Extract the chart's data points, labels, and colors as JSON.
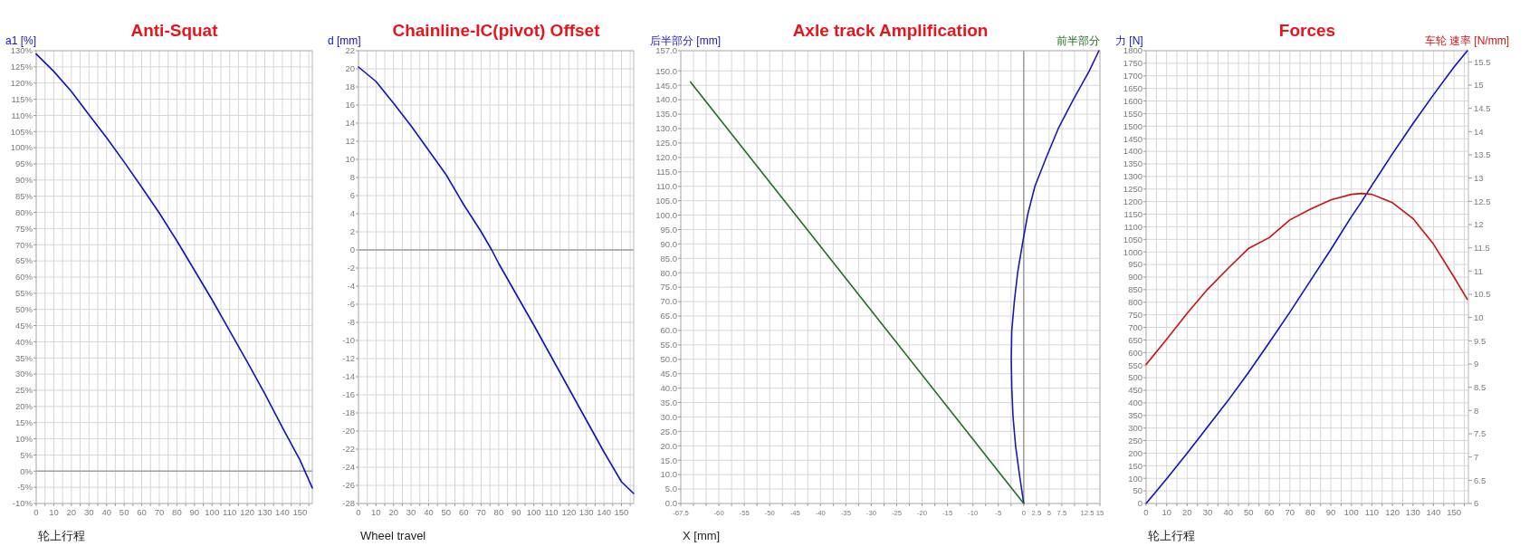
{
  "chart_data": [
    {
      "type": "line",
      "title": "Anti-Squat",
      "ylabel": "a1 [%]",
      "xlabel": "轮上行程",
      "x": [
        0,
        10,
        20,
        30,
        40,
        50,
        60,
        70,
        80,
        90,
        100,
        110,
        120,
        130,
        140,
        150,
        157
      ],
      "series": [
        {
          "color": "#1010c0",
          "values": [
            129,
            123.6,
            117.4,
            110.2,
            103.1,
            95.6,
            87.8,
            79.8,
            71.2,
            62.1,
            53,
            43.4,
            33.8,
            23.9,
            13.5,
            3.4,
            -5.2
          ]
        }
      ],
      "xlim": [
        0,
        157
      ],
      "xticks": [
        0,
        {
          "value": 5,
          "label": null
        },
        10,
        {
          "value": 15,
          "label": null
        },
        20,
        {
          "value": 25,
          "label": null
        },
        30,
        {
          "value": 35,
          "label": null
        },
        40,
        {
          "value": 45,
          "label": null
        },
        50,
        {
          "value": 55,
          "label": null
        },
        60,
        {
          "value": 65,
          "label": null
        },
        70,
        {
          "value": 75,
          "label": null
        },
        80,
        {
          "value": 85,
          "label": null
        },
        90,
        {
          "value": 95,
          "label": null
        },
        100,
        {
          "value": 105,
          "label": null
        },
        110,
        {
          "value": 115,
          "label": null
        },
        120,
        {
          "value": 125,
          "label": null
        },
        130,
        {
          "value": 135,
          "label": null
        },
        140,
        {
          "value": 145,
          "label": null
        },
        150,
        {
          "value": 155,
          "label": null
        }
      ],
      "ylim": [
        -10,
        130
      ],
      "yticks": [
        {
          "value": -10,
          "label": "-10%"
        },
        {
          "value": -5,
          "label": "-5%"
        },
        {
          "value": 0,
          "label": "0%"
        },
        {
          "value": 5,
          "label": "5%"
        },
        {
          "value": 10,
          "label": "10%"
        },
        {
          "value": 15,
          "label": "15%"
        },
        {
          "value": 20,
          "label": "20%"
        },
        {
          "value": 25,
          "label": "25%"
        },
        {
          "value": 30,
          "label": "30%"
        },
        {
          "value": 35,
          "label": "35%"
        },
        {
          "value": 40,
          "label": "40%"
        },
        {
          "value": 45,
          "label": "45%"
        },
        {
          "value": 50,
          "label": "50%"
        },
        {
          "value": 55,
          "label": "55%"
        },
        {
          "value": 60,
          "label": "60%"
        },
        {
          "value": 65,
          "label": "65%"
        },
        {
          "value": 70,
          "label": "70%"
        },
        {
          "value": 75,
          "label": "75%"
        },
        {
          "value": 80,
          "label": "80%"
        },
        {
          "value": 85,
          "label": "85%"
        },
        {
          "value": 90,
          "label": "90%"
        },
        {
          "value": 95,
          "label": "95%"
        },
        {
          "value": 100,
          "label": "100%"
        },
        {
          "value": 105,
          "label": "105%"
        },
        {
          "value": 110,
          "label": "110%"
        },
        {
          "value": 115,
          "label": "115%"
        },
        {
          "value": 120,
          "label": "120%"
        },
        {
          "value": 125,
          "label": "125%"
        },
        {
          "value": 130,
          "label": "130%"
        }
      ],
      "grid": true,
      "ref_lines": [
        {
          "axis": "y",
          "value": 0,
          "color": "#a0a0a0"
        }
      ]
    },
    {
      "type": "line",
      "title": "Chainline-IC(pivot) Offset",
      "ylabel": "d [mm]",
      "xlabel": "Wheel travel",
      "x": [
        0,
        10,
        20,
        30,
        40,
        50,
        60,
        70,
        76,
        80,
        90,
        100,
        110,
        120,
        130,
        140,
        150,
        157
      ],
      "series": [
        {
          "color": "#1010c0",
          "values": [
            20.2,
            18.6,
            16.2,
            13.7,
            11,
            8.3,
            5,
            2,
            0,
            -1.5,
            -4.9,
            -8.3,
            -11.8,
            -15.3,
            -18.8,
            -22.3,
            -25.6,
            -26.9
          ]
        }
      ],
      "xlim": [
        0,
        157
      ],
      "xticks": [
        0,
        {
          "value": 5,
          "label": null
        },
        10,
        {
          "value": 15,
          "label": null
        },
        20,
        {
          "value": 25,
          "label": null
        },
        30,
        {
          "value": 35,
          "label": null
        },
        40,
        {
          "value": 45,
          "label": null
        },
        50,
        {
          "value": 55,
          "label": null
        },
        60,
        {
          "value": 65,
          "label": null
        },
        70,
        {
          "value": 75,
          "label": null
        },
        80,
        {
          "value": 85,
          "label": null
        },
        90,
        {
          "value": 95,
          "label": null
        },
        100,
        {
          "value": 105,
          "label": null
        },
        110,
        {
          "value": 115,
          "label": null
        },
        120,
        {
          "value": 125,
          "label": null
        },
        130,
        {
          "value": 135,
          "label": null
        },
        140,
        {
          "value": 145,
          "label": null
        },
        150,
        {
          "value": 155,
          "label": null
        }
      ],
      "ylim": [
        -28,
        22
      ],
      "yticks": [
        -28,
        -26,
        -24,
        -22,
        -20,
        -18,
        -16,
        -14,
        -12,
        -10,
        -8,
        -6,
        -4,
        -2,
        0,
        2,
        4,
        6,
        8,
        10,
        12,
        14,
        16,
        18,
        20,
        22
      ],
      "grid": true,
      "ref_lines": [
        {
          "axis": "y",
          "value": 0,
          "color": "#a0a0a0"
        }
      ]
    },
    {
      "type": "line",
      "title": "Axle track Amplification",
      "ylabel": "后半部分 [mm]",
      "xlabel": "X [mm]",
      "annotations": [
        "前半部分"
      ],
      "series": [
        {
          "color": "#1a1ab0",
          "x": [
            0,
            -0.84,
            -1.6,
            -2.1,
            -2.35,
            -2.45,
            -2.35,
            -1.85,
            -1.2,
            -0.25,
            0.76,
            2.2,
            4.45,
            6.8,
            9.75,
            12.9,
            14.8
          ],
          "values": [
            0,
            10,
            20,
            30,
            40,
            50,
            60,
            70,
            80,
            90,
            100,
            110,
            120,
            130,
            140,
            150,
            157
          ]
        },
        {
          "color": "#1f6e1f",
          "x": [
            0,
            -65.6
          ],
          "values": [
            0,
            146.2
          ]
        }
      ],
      "xlim": [
        -67.5,
        15
      ],
      "xticks": [
        -67.5,
        {
          "value": -65,
          "label": null
        },
        {
          "value": -62.5,
          "label": null
        },
        -60,
        {
          "value": -57.5,
          "label": null
        },
        -55,
        {
          "value": -52.5,
          "label": null
        },
        -50,
        {
          "value": -47.5,
          "label": null
        },
        -45,
        {
          "value": -42.5,
          "label": null
        },
        -40,
        {
          "value": -37.5,
          "label": null
        },
        -35,
        {
          "value": -32.5,
          "label": null
        },
        -30,
        {
          "value": -27.5,
          "label": null
        },
        -25,
        {
          "value": -22.5,
          "label": null
        },
        -20,
        {
          "value": -17.5,
          "label": null
        },
        -15,
        {
          "value": -12.5,
          "label": null
        },
        -10,
        {
          "value": -7.5,
          "label": null
        },
        -5,
        {
          "value": -2.5,
          "label": null
        },
        0,
        2.5,
        5,
        7.5,
        {
          "value": 10,
          "label": null
        },
        12.5,
        15
      ],
      "ylim": [
        0,
        157
      ],
      "yticks": [
        {
          "value": 0,
          "label": "0.0"
        },
        {
          "value": 5,
          "label": "5.0"
        },
        {
          "value": 10,
          "label": "10.0"
        },
        {
          "value": 15,
          "label": "15.0"
        },
        {
          "value": 20,
          "label": "20.0"
        },
        {
          "value": 25,
          "label": "25.0"
        },
        {
          "value": 30,
          "label": "30.0"
        },
        {
          "value": 35,
          "label": "35.0"
        },
        {
          "value": 40,
          "label": "40.0"
        },
        {
          "value": 45,
          "label": "45.0"
        },
        {
          "value": 50,
          "label": "50.0"
        },
        {
          "value": 55,
          "label": "55.0"
        },
        {
          "value": 60,
          "label": "60.0"
        },
        {
          "value": 65,
          "label": "65.0"
        },
        {
          "value": 70,
          "label": "70.0"
        },
        {
          "value": 75,
          "label": "75.0"
        },
        {
          "value": 80,
          "label": "80.0"
        },
        {
          "value": 85,
          "label": "85.0"
        },
        {
          "value": 90,
          "label": "90.0"
        },
        {
          "value": 95,
          "label": "95.0"
        },
        {
          "value": 100,
          "label": "100.0"
        },
        {
          "value": 105,
          "label": "105.0"
        },
        {
          "value": 110,
          "label": "110.0"
        },
        {
          "value": 115,
          "label": "115.0"
        },
        {
          "value": 120,
          "label": "120.0"
        },
        {
          "value": 125,
          "label": "125.0"
        },
        {
          "value": 130,
          "label": "130.0"
        },
        {
          "value": 135,
          "label": "135.0"
        },
        {
          "value": 140,
          "label": "140.0"
        },
        {
          "value": 145,
          "label": "145.0"
        },
        {
          "value": 150,
          "label": "150.0"
        },
        {
          "value": 157,
          "label": "157.0"
        }
      ],
      "grid": true,
      "ref_lines": [
        {
          "axis": "x",
          "value": 0,
          "color": "#a0a0a0"
        }
      ]
    },
    {
      "type": "line",
      "title": "Forces",
      "ylabel": "力 [N]",
      "y2label": "车轮 速率 [N/mm]",
      "xlabel": "轮上行程",
      "x": [
        0,
        10,
        20,
        30,
        40,
        50,
        60,
        70,
        80,
        90,
        100,
        105,
        110,
        120,
        130,
        140,
        150,
        156.5
      ],
      "series": [
        {
          "color": "#1010c0",
          "values": [
            0,
            98,
            200,
            305,
            410,
            522,
            640,
            760,
            885,
            1010,
            1140,
            1200,
            1265,
            1390,
            1510,
            1625,
            1735,
            1800
          ]
        },
        {
          "color": "#cc1111",
          "axis": "y2",
          "values": [
            8.99,
            9.53,
            10.09,
            10.61,
            11.06,
            11.49,
            11.72,
            12.1,
            12.33,
            12.53,
            12.65,
            12.67,
            12.65,
            12.47,
            12.13,
            11.58,
            10.87,
            10.39
          ]
        }
      ],
      "xlim": [
        0,
        157
      ],
      "xticks": [
        0,
        {
          "value": 5,
          "label": null
        },
        10,
        {
          "value": 15,
          "label": null
        },
        20,
        {
          "value": 25,
          "label": null
        },
        30,
        {
          "value": 35,
          "label": null
        },
        40,
        {
          "value": 45,
          "label": null
        },
        50,
        {
          "value": 55,
          "label": null
        },
        60,
        {
          "value": 65,
          "label": null
        },
        70,
        {
          "value": 75,
          "label": null
        },
        80,
        {
          "value": 85,
          "label": null
        },
        90,
        {
          "value": 95,
          "label": null
        },
        100,
        {
          "value": 105,
          "label": null
        },
        110,
        {
          "value": 115,
          "label": null
        },
        120,
        {
          "value": 125,
          "label": null
        },
        130,
        {
          "value": 135,
          "label": null
        },
        140,
        {
          "value": 145,
          "label": null
        },
        150,
        {
          "value": 155,
          "label": null
        }
      ],
      "ylim": [
        0,
        1800
      ],
      "yticks": [
        0,
        50,
        100,
        150,
        200,
        250,
        300,
        350,
        400,
        450,
        500,
        550,
        600,
        650,
        700,
        750,
        800,
        850,
        900,
        950,
        1000,
        1050,
        1100,
        1150,
        1200,
        1250,
        1300,
        1350,
        1400,
        1450,
        1500,
        1550,
        1600,
        1650,
        1700,
        1750,
        1800
      ],
      "y2lim": [
        6,
        15.74
      ],
      "y2ticks": [
        6,
        6.5,
        7,
        7.5,
        8,
        8.5,
        9,
        9.5,
        10,
        10.5,
        11,
        11.5,
        12,
        12.5,
        13,
        13.5,
        14,
        14.5,
        15,
        15.5
      ],
      "grid": true
    }
  ]
}
